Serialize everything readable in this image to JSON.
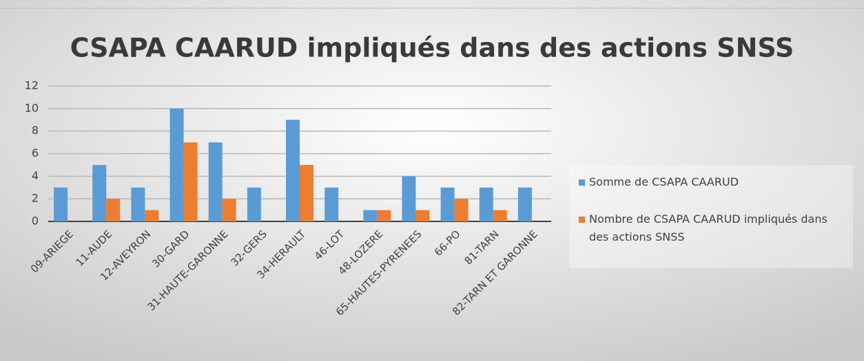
{
  "chart_data": {
    "type": "bar",
    "title": "CSAPA CAARUD impliqués dans des actions SNSS",
    "categories": [
      "09-ARIEGE",
      "11-AUDE",
      "12-AVEYRON",
      "30-GARD",
      "31-HAUTE-GARONNE",
      "32-GERS",
      "34-HERAULT",
      "46-LOT",
      "48-LOZERE",
      "65-HAUTES-PYRENEES",
      "66-PO",
      "81-TARN",
      "82-TARN ET GARONNE"
    ],
    "series": [
      {
        "name": "Somme de CSAPA CAARUD",
        "color": "#5b9bd5",
        "values": [
          3,
          5,
          3,
          10,
          7,
          3,
          9,
          3,
          1,
          4,
          3,
          3,
          3
        ]
      },
      {
        "name": "Nombre de CSAPA CAARUD impliqués dans des actions SNSS",
        "color": "#ed7d31",
        "values": [
          0,
          2,
          1,
          7,
          2,
          0,
          5,
          0,
          1,
          1,
          2,
          1,
          0
        ]
      }
    ],
    "ylim": [
      0,
      12
    ],
    "yticks": [
      0,
      2,
      4,
      6,
      8,
      10,
      12
    ],
    "grid": true,
    "legend": "right"
  }
}
